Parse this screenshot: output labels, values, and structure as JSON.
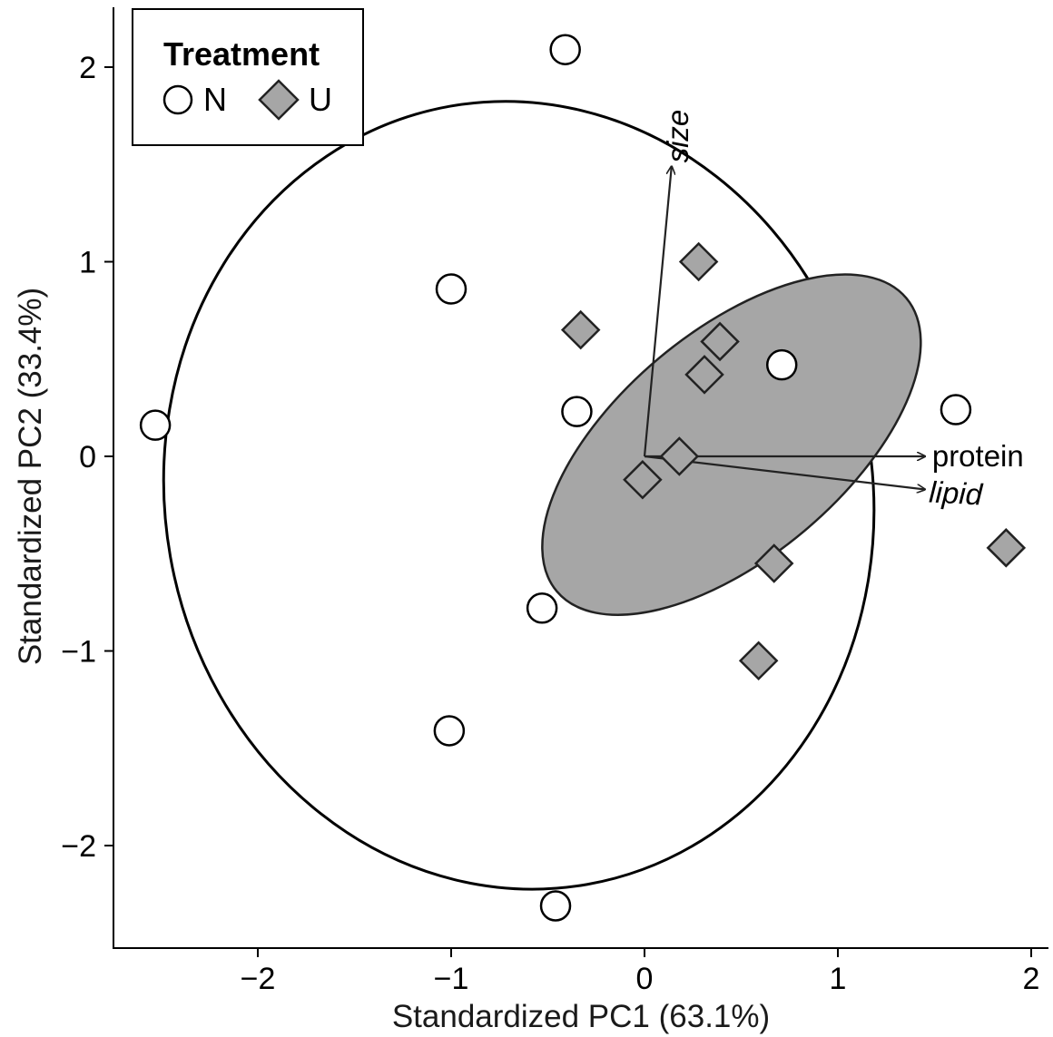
{
  "chart_data": {
    "type": "scatter",
    "title": "",
    "xlabel": "Standardized PC1 (63.1%)",
    "ylabel": "Standardized PC2 (33.4%)",
    "xlim": [
      -2.75,
      2.05
    ],
    "ylim": [
      -2.52,
      2.3
    ],
    "xticks": [
      -2,
      -1,
      0,
      1,
      2
    ],
    "yticks": [
      -2,
      -1,
      0,
      1,
      2
    ],
    "tick_labels": {
      "x": [
        "−2",
        "−1",
        "0",
        "1",
        "2"
      ],
      "y": [
        "−2",
        "−1",
        "0",
        "1",
        "2"
      ]
    },
    "grid": false,
    "legend": {
      "title": "Treatment",
      "placement": "top-left",
      "entries": [
        "N",
        "U"
      ]
    },
    "series": [
      {
        "name": "N",
        "marker": "circle",
        "fill": "#ffffff",
        "points": [
          [
            -0.41,
            2.09
          ],
          [
            -1.0,
            0.86
          ],
          [
            -2.53,
            0.16
          ],
          [
            -0.35,
            0.23
          ],
          [
            0.71,
            0.47
          ],
          [
            1.61,
            0.24
          ],
          [
            -0.53,
            -0.78
          ],
          [
            -1.01,
            -1.41
          ],
          [
            -0.46,
            -2.31
          ]
        ]
      },
      {
        "name": "U",
        "marker": "diamond",
        "fill": "#a6a6a6",
        "points": [
          [
            0.28,
            1.0
          ],
          [
            -0.33,
            0.65
          ],
          [
            0.39,
            0.59
          ],
          [
            0.31,
            0.42
          ],
          [
            0.18,
            0.0
          ],
          [
            -0.01,
            -0.12
          ],
          [
            0.67,
            -0.55
          ],
          [
            0.59,
            -1.05
          ],
          [
            1.87,
            -0.47
          ]
        ]
      }
    ],
    "ellipses": [
      {
        "group": "N",
        "center": [
          -0.65,
          -0.2
        ],
        "semi_axes": [
          1.83,
          2.03
        ],
        "rotation_deg": -10,
        "fill": "none"
      },
      {
        "group": "U",
        "center": [
          0.45,
          0.06
        ],
        "semi_axes": [
          1.18,
          0.58
        ],
        "rotation_deg": -40,
        "fill": "#a6a6a6"
      }
    ],
    "vectors": [
      {
        "label": "size",
        "italic": true,
        "end": [
          0.14,
          1.49
        ]
      },
      {
        "label": "protein",
        "italic": false,
        "end": [
          1.45,
          0.0
        ]
      },
      {
        "label": "lipid",
        "italic": true,
        "end": [
          1.45,
          -0.17
        ]
      }
    ]
  }
}
